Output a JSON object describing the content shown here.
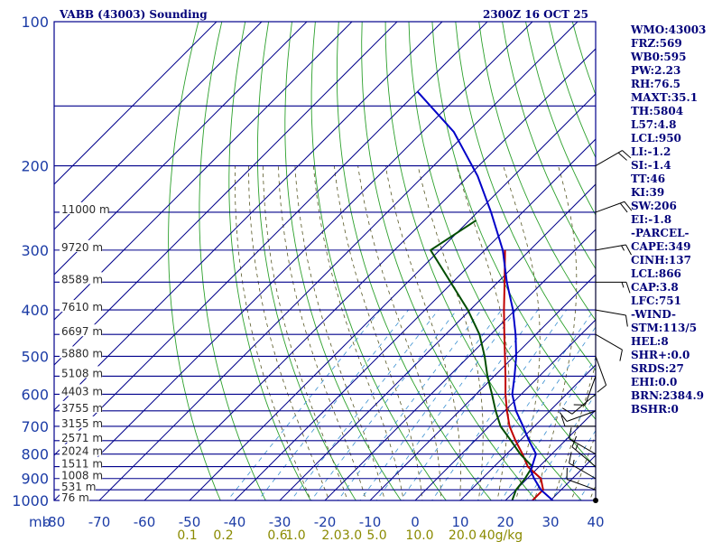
{
  "header": {
    "station": "VABB (43003) Sounding",
    "time": "2300Z 16 OCT 25"
  },
  "side_panel": [
    "WMO:43003",
    "FRZ:569",
    "WB0:595",
    "PW:2.23",
    "RH:76.5",
    "MAXT:35.1",
    "TH:5804",
    "L57:4.8",
    "LCL:950",
    "LI:-1.2",
    "SI:-1.4",
    "TT:46",
    "KI:39",
    "SW:206",
    "EI:-1.8",
    "-PARCEL-",
    "CAPE:349",
    "CINH:137",
    "LCL:866",
    "CAP:3.8",
    "LFC:751",
    "-WIND-",
    "STM:113/5",
    "HEL:8",
    "SHR+:0.0",
    "SRDS:27",
    "EHI:0.0",
    "BRN:2384.9",
    "BSHR:0"
  ],
  "colors": {
    "frame": "#00008b",
    "isotherm": "#00008b",
    "dry_adiabat": "#2ca02c",
    "moist_adiabat": "#555522",
    "mixing_ratio": "#3a8fd0",
    "temperature": "#c00000",
    "dewpoint": "#004d00",
    "parcel": "#0000c8"
  },
  "chart_data": {
    "type": "line",
    "title": "VABB (43003) Sounding",
    "xlabel": "mb",
    "x_unit": "°C",
    "xlim": [
      -80,
      40
    ],
    "ylim_hpa": [
      1000,
      100
    ],
    "pressure_ticks": [
      100,
      200,
      300,
      400,
      500,
      600,
      700,
      800,
      900,
      1000
    ],
    "temperature_ticks": [
      -80,
      -70,
      -60,
      -50,
      -40,
      -30,
      -20,
      -10,
      0,
      10,
      20,
      30,
      40
    ],
    "temperature_tick_labels": [
      "-80",
      "-70",
      "-60",
      "-50",
      "-40",
      "-30",
      "-20",
      "-10",
      "0",
      "10",
      "20",
      "30",
      "40"
    ],
    "height_labels": [
      {
        "p": 1000,
        "label": "76 m"
      },
      {
        "p": 950,
        "label": "531 m"
      },
      {
        "p": 900,
        "label": "1008 m"
      },
      {
        "p": 850,
        "label": "1511 m"
      },
      {
        "p": 800,
        "label": "2024 m"
      },
      {
        "p": 750,
        "label": "2571 m"
      },
      {
        "p": 700,
        "label": "3155 m"
      },
      {
        "p": 650,
        "label": "3755 m"
      },
      {
        "p": 600,
        "label": "4403 m"
      },
      {
        "p": 550,
        "label": "5108 m"
      },
      {
        "p": 500,
        "label": "5880 m"
      },
      {
        "p": 450,
        "label": "6697 m"
      },
      {
        "p": 400,
        "label": "7610 m"
      },
      {
        "p": 350,
        "label": "8589 m"
      },
      {
        "p": 300,
        "label": "9720 m"
      },
      {
        "p": 250,
        "label": "11000 m"
      }
    ],
    "mixing_ratio_labels": [
      {
        "label": "0.1",
        "t": -50.5
      },
      {
        "label": "0.2",
        "t": -42.5
      },
      {
        "label": "0.6",
        "t": -30.5
      },
      {
        "label": "1.0",
        "t": -26.5
      },
      {
        "label": "2.0",
        "t": -18.5
      },
      {
        "label": "3.0",
        "t": -14
      },
      {
        "label": "5.0",
        "t": -8.5
      },
      {
        "label": "10.0",
        "t": 1
      },
      {
        "label": "20.0",
        "t": 10.5
      },
      {
        "label": "40g/kg",
        "t": 19
      }
    ],
    "series": [
      {
        "name": "Temperature",
        "color": "#c00000",
        "points": [
          [
            26.0,
            1000
          ],
          [
            26.0,
            950
          ],
          [
            23.0,
            900
          ],
          [
            17.5,
            850
          ],
          [
            13.5,
            800
          ],
          [
            9.0,
            750
          ],
          [
            4.5,
            700
          ],
          [
            0.5,
            650
          ],
          [
            -3.5,
            600
          ],
          [
            -7.5,
            550
          ],
          [
            -12.0,
            500
          ],
          [
            -17.0,
            450
          ],
          [
            -22.5,
            400
          ],
          [
            -28.5,
            350
          ],
          [
            -35.5,
            300
          ]
        ]
      },
      {
        "name": "Dewpoint",
        "color": "#004d00",
        "points": [
          [
            21.5,
            1000
          ],
          [
            20.0,
            950
          ],
          [
            19.5,
            900
          ],
          [
            18.5,
            850
          ],
          [
            13.0,
            800
          ],
          [
            8.0,
            750
          ],
          [
            2.5,
            700
          ],
          [
            -2.0,
            650
          ],
          [
            -6.5,
            600
          ],
          [
            -11.5,
            550
          ],
          [
            -16.5,
            500
          ],
          [
            -22.5,
            450
          ],
          [
            -30.5,
            400
          ],
          [
            -52.0,
            300
          ],
          [
            -48.5,
            260
          ]
        ]
      },
      {
        "name": "Parcel",
        "color": "#0000c8",
        "points": [
          [
            30.5,
            1000
          ],
          [
            25.5,
            950
          ],
          [
            21.5,
            900
          ],
          [
            19.0,
            866
          ],
          [
            16.5,
            800
          ],
          [
            12.0,
            750
          ],
          [
            7.5,
            700
          ],
          [
            2.5,
            650
          ],
          [
            -2.0,
            600
          ],
          [
            -5.5,
            550
          ],
          [
            -9.5,
            500
          ],
          [
            -14.5,
            450
          ],
          [
            -20.5,
            400
          ],
          [
            -28.0,
            350
          ],
          [
            -36.0,
            300
          ],
          [
            -47.0,
            250
          ],
          [
            -58.0,
            210
          ],
          [
            -73.0,
            170
          ],
          [
            -90.0,
            140
          ]
        ]
      }
    ],
    "wind_barbs": [
      {
        "p": 1000,
        "dir": 0,
        "spd": 0
      },
      {
        "p": 950,
        "dir": 290,
        "spd": 10
      },
      {
        "p": 900,
        "dir": 300,
        "spd": 15
      },
      {
        "p": 850,
        "dir": 310,
        "spd": 15
      },
      {
        "p": 800,
        "dir": 300,
        "spd": 10
      },
      {
        "p": 700,
        "dir": 270,
        "spd": 10
      },
      {
        "p": 650,
        "dir": 250,
        "spd": 10
      },
      {
        "p": 600,
        "dir": 230,
        "spd": 10
      },
      {
        "p": 550,
        "dir": 200,
        "spd": 10
      },
      {
        "p": 500,
        "dir": 160,
        "spd": 10
      },
      {
        "p": 450,
        "dir": 120,
        "spd": 10
      },
      {
        "p": 400,
        "dir": 100,
        "spd": 10
      },
      {
        "p": 350,
        "dir": 90,
        "spd": 15
      },
      {
        "p": 300,
        "dir": 80,
        "spd": 15
      },
      {
        "p": 250,
        "dir": 70,
        "spd": 20
      },
      {
        "p": 200,
        "dir": 60,
        "spd": 20
      }
    ]
  }
}
